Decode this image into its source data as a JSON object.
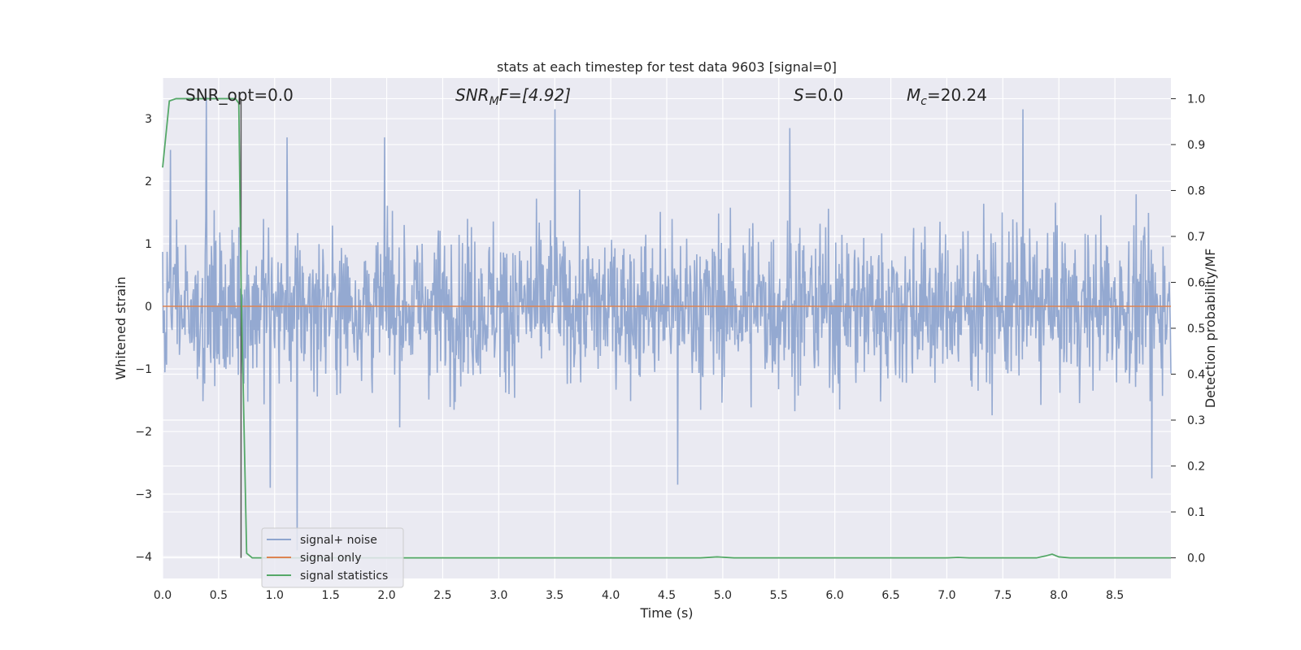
{
  "chart_data": {
    "type": "line",
    "title": "stats at each timestep for test data 9603 [signal=0]",
    "xlabel": "Time (s)",
    "ylabel_left": "Whitened strain",
    "ylabel_right": "Detection probability/MF",
    "xlim": [
      0.0,
      9.0
    ],
    "ylim_left": [
      -4.35,
      3.65
    ],
    "ylim_right": [
      -0.045,
      1.045
    ],
    "grid": true,
    "legend_position": "lower-left",
    "x_ticks": [
      "0.0",
      "0.5",
      "1.0",
      "1.5",
      "2.0",
      "2.5",
      "3.0",
      "3.5",
      "4.0",
      "4.5",
      "5.0",
      "5.5",
      "6.0",
      "6.5",
      "7.0",
      "7.5",
      "8.0",
      "8.5"
    ],
    "y_left_ticks": [
      "3",
      "2",
      "1",
      "0",
      "−1",
      "−2",
      "−3",
      "−4"
    ],
    "y_right_ticks": [
      "1.0",
      "0.9",
      "0.8",
      "0.7",
      "0.6",
      "0.5",
      "0.4",
      "0.3",
      "0.2",
      "0.1",
      "0.0"
    ],
    "annotations": {
      "snr_opt": "SNR_opt=0.0",
      "snr_mf_var": "SNR",
      "snr_mf_sub": "M",
      "snr_mf_rest": "F=[4.92]",
      "s_var": "S",
      "s_rest": "=0.0",
      "mc_var": "M",
      "mc_sub": "c",
      "mc_rest": "=20.24"
    },
    "vertical_line_x": 0.7,
    "series": [
      {
        "name": "signal+ noise",
        "color": "#8fa5cf",
        "description_values": "whitened noise, roughly within ±1.8 with spikes",
        "peaks": [
          [
            0.07,
            2.5
          ],
          [
            0.39,
            3.35
          ],
          [
            0.96,
            -2.9
          ],
          [
            1.11,
            2.7
          ],
          [
            1.2,
            -3.9
          ],
          [
            1.98,
            2.7
          ],
          [
            3.5,
            3.15
          ],
          [
            4.6,
            -2.85
          ],
          [
            5.6,
            2.85
          ],
          [
            7.68,
            3.15
          ],
          [
            8.83,
            -2.75
          ]
        ]
      },
      {
        "name": "signal only",
        "color": "#dd8452",
        "values_constant": 0.0
      },
      {
        "name": "signal statistics",
        "color": "#55a868",
        "points": [
          [
            0.0,
            0.85
          ],
          [
            0.06,
            0.995
          ],
          [
            0.12,
            1.0
          ],
          [
            0.3,
            1.0
          ],
          [
            0.5,
            1.0
          ],
          [
            0.65,
            1.0
          ],
          [
            0.68,
            0.99
          ],
          [
            0.7,
            0.6
          ],
          [
            0.75,
            0.01
          ],
          [
            0.8,
            0.0
          ],
          [
            2.0,
            0.0
          ],
          [
            4.0,
            0.0
          ],
          [
            4.8,
            0.0
          ],
          [
            4.95,
            0.002
          ],
          [
            5.1,
            0.0
          ],
          [
            7.0,
            0.0
          ],
          [
            7.1,
            0.001
          ],
          [
            7.2,
            0.0
          ],
          [
            7.8,
            0.0
          ],
          [
            7.88,
            0.004
          ],
          [
            7.94,
            0.008
          ],
          [
            8.0,
            0.002
          ],
          [
            8.1,
            0.0
          ],
          [
            9.0,
            0.0
          ]
        ]
      }
    ]
  }
}
